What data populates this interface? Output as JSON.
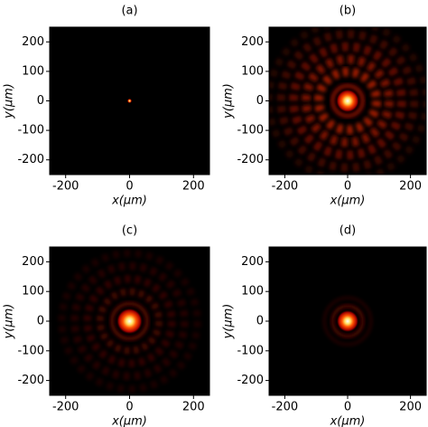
{
  "chart_data": [
    {
      "type": "image",
      "title": "(a)",
      "xlabel": "x(μm)",
      "ylabel": "y(μm)",
      "xlim": [
        -250,
        250
      ],
      "ylim": [
        -250,
        250
      ],
      "xticks": [
        -200,
        0,
        200
      ],
      "yticks": [
        -200,
        -100,
        0,
        100,
        200
      ]
    },
    {
      "type": "image",
      "title": "(b)",
      "xlabel": "x(μm)",
      "ylabel": "y(μm)",
      "xlim": [
        -250,
        250
      ],
      "ylim": [
        -250,
        250
      ],
      "xticks": [
        -200,
        0,
        200
      ],
      "yticks": [
        -200,
        -100,
        0,
        100,
        200
      ]
    },
    {
      "type": "image",
      "title": "(c)",
      "xlabel": "x(μm)",
      "ylabel": "y(μm)",
      "xlim": [
        -250,
        250
      ],
      "ylim": [
        -250,
        250
      ],
      "xticks": [
        -200,
        0,
        200
      ],
      "yticks": [
        -200,
        -100,
        0,
        100,
        200
      ]
    },
    {
      "type": "image",
      "title": "(d)",
      "xlabel": "x(μm)",
      "ylabel": "y(μm)",
      "xlim": [
        -250,
        250
      ],
      "ylim": [
        -250,
        250
      ],
      "xticks": [
        -200,
        0,
        200
      ],
      "yticks": [
        -200,
        -100,
        0,
        100,
        200
      ]
    }
  ]
}
